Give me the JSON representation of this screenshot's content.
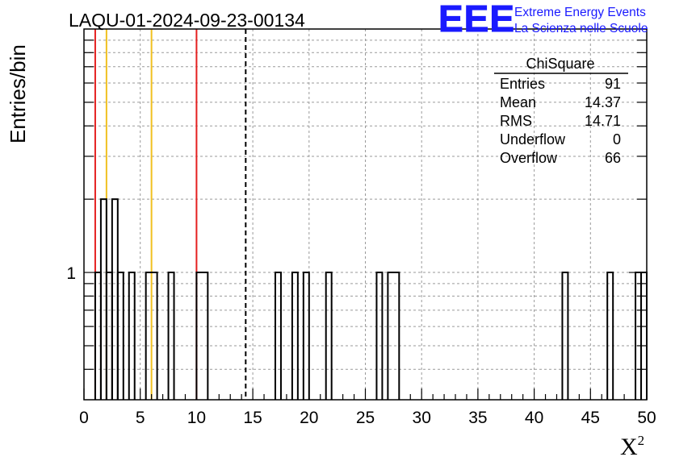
{
  "chart_data": {
    "type": "bar",
    "title": "LAQU-01-2024-09-23-00134",
    "xlabel": "X",
    "xlabel_sup": "2",
    "ylabel": "Entries/bin",
    "xlim": [
      0,
      50
    ],
    "ylim": [
      0.3,
      10
    ],
    "y_scale": "log",
    "grid": true,
    "x_ticks": [
      "0",
      "5",
      "10",
      "15",
      "20",
      "25",
      "30",
      "35",
      "40",
      "45",
      "50"
    ],
    "y_tick_labels": [
      "1"
    ],
    "bins": [
      {
        "x0": 1,
        "x1": 1.5,
        "y": 1
      },
      {
        "x0": 1.5,
        "x1": 2,
        "y": 2
      },
      {
        "x0": 2,
        "x1": 2.5,
        "y": 1
      },
      {
        "x0": 2.5,
        "x1": 3,
        "y": 2
      },
      {
        "x0": 3,
        "x1": 3.5,
        "y": 1
      },
      {
        "x0": 4,
        "x1": 4.5,
        "y": 1
      },
      {
        "x0": 5.5,
        "x1": 6.5,
        "y": 1
      },
      {
        "x0": 7.5,
        "x1": 8,
        "y": 1
      },
      {
        "x0": 10,
        "x1": 11,
        "y": 1
      },
      {
        "x0": 17,
        "x1": 17.5,
        "y": 1
      },
      {
        "x0": 18.5,
        "x1": 19,
        "y": 1
      },
      {
        "x0": 19.5,
        "x1": 20,
        "y": 1
      },
      {
        "x0": 21.5,
        "x1": 22,
        "y": 1
      },
      {
        "x0": 26,
        "x1": 26.5,
        "y": 1
      },
      {
        "x0": 27,
        "x1": 28,
        "y": 1
      },
      {
        "x0": 42.5,
        "x1": 43,
        "y": 1
      },
      {
        "x0": 46.5,
        "x1": 47,
        "y": 1
      },
      {
        "x0": 49,
        "x1": 49.5,
        "y": 1
      },
      {
        "x0": 49.5,
        "x1": 50,
        "y": 1
      }
    ],
    "vertical_lines": [
      {
        "x": 1,
        "color": "#e52020",
        "style": "solid"
      },
      {
        "x": 2,
        "color": "#f0c020",
        "style": "solid"
      },
      {
        "x": 6,
        "color": "#f0c020",
        "style": "solid"
      },
      {
        "x": 10,
        "color": "#e52020",
        "style": "solid"
      },
      {
        "x": 14.37,
        "color": "#000000",
        "style": "dashed"
      }
    ],
    "stats_box": {
      "title": "ChiSquare",
      "rows": [
        {
          "label": "Entries",
          "value": "91"
        },
        {
          "label": "Mean",
          "value": "14.37"
        },
        {
          "label": "RMS",
          "value": "14.71"
        },
        {
          "label": "Underflow",
          "value": "0"
        },
        {
          "label": "Overflow",
          "value": "66"
        }
      ]
    },
    "logo": {
      "mark": "EEE",
      "line1": "Extreme Energy Events",
      "line2": "La Scienza nelle Scuole",
      "color": "#1a1aff"
    }
  }
}
